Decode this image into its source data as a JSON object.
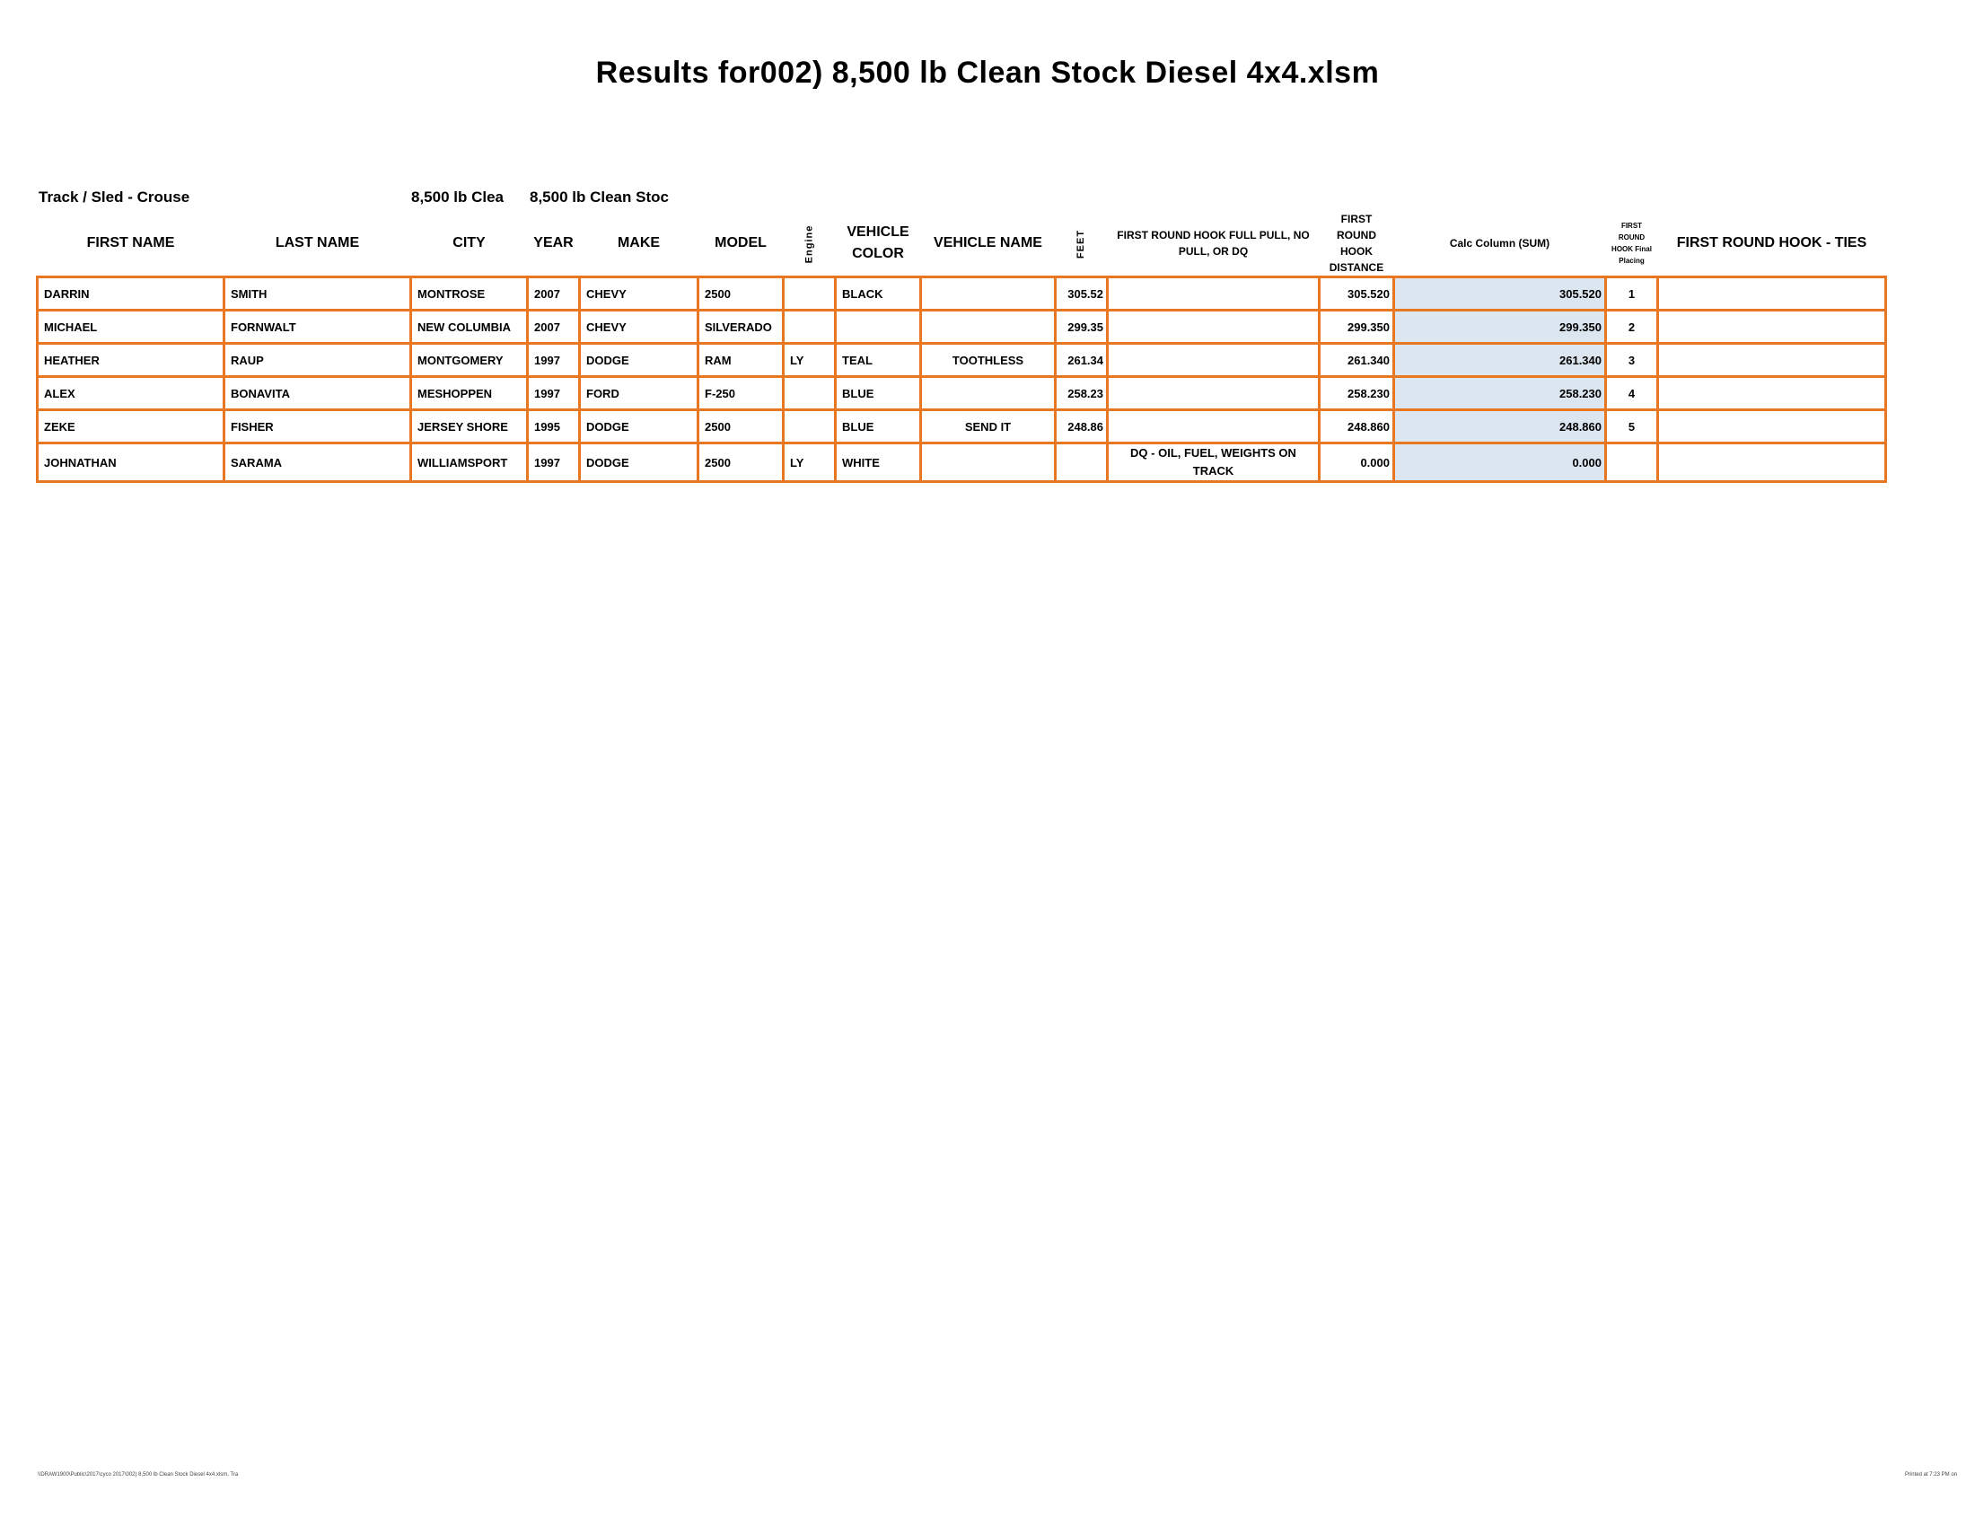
{
  "title": "Results for002) 8,500 lb Clean Stock Diesel 4x4.xlsm",
  "track": {
    "label": "Track / Sled - Crouse",
    "class_a": "8,500 lb Clea",
    "class_b": "8,500 lb Clean Stoc"
  },
  "columns": [
    "FIRST NAME",
    "LAST NAME",
    "CITY",
    "YEAR",
    "MAKE",
    "MODEL",
    "Engine",
    "VEHICLE COLOR",
    "VEHICLE NAME",
    "FEET",
    "FIRST ROUND HOOK FULL PULL, NO PULL, OR DQ",
    "FIRST ROUND HOOK DISTANCE",
    "Calc Column (SUM)",
    "FIRST ROUND HOOK Final Placing",
    "FIRST ROUND HOOK - TIES"
  ],
  "rows": [
    [
      "DARRIN",
      "SMITH",
      "MONTROSE",
      "2007",
      "CHEVY",
      "2500",
      "",
      "BLACK",
      "",
      "305.52",
      "",
      "305.520",
      "305.520",
      "1",
      ""
    ],
    [
      "MICHAEL",
      "FORNWALT",
      "NEW COLUMBIA",
      "2007",
      "CHEVY",
      "SILVERADO",
      "",
      "",
      "",
      "299.35",
      "",
      "299.350",
      "299.350",
      "2",
      ""
    ],
    [
      "HEATHER",
      "RAUP",
      "MONTGOMERY",
      "1997",
      "DODGE",
      "RAM",
      "LY",
      "TEAL",
      "TOOTHLESS",
      "261.34",
      "",
      "261.340",
      "261.340",
      "3",
      ""
    ],
    [
      "ALEX",
      "BONAVITA",
      "MESHOPPEN",
      "1997",
      "FORD",
      "F-250",
      "",
      "BLUE",
      "",
      "258.23",
      "",
      "258.230",
      "258.230",
      "4",
      ""
    ],
    [
      "ZEKE",
      "FISHER",
      "JERSEY SHORE",
      "1995",
      "DODGE",
      "2500",
      "",
      "BLUE",
      "SEND IT",
      "248.86",
      "",
      "248.860",
      "248.860",
      "5",
      ""
    ],
    [
      "JOHNATHAN",
      "SARAMA",
      "WILLIAMSPORT",
      "1997",
      "DODGE",
      "2500",
      "LY",
      "WHITE",
      "",
      "",
      "DQ - OIL, FUEL, WEIGHTS ON TRACK",
      "0.000",
      "0.000",
      "",
      ""
    ]
  ],
  "footer": {
    "left": "\\\\DRAW1900\\Public\\2017\\cyco 2017\\002) 8,500 lb Clean Stock Diesel 4x4.xlsm, Tra",
    "right": "Printed at 7:23 PM on"
  },
  "colors": {
    "border": "#E87722",
    "calc_fill": "#DCE6F1"
  }
}
